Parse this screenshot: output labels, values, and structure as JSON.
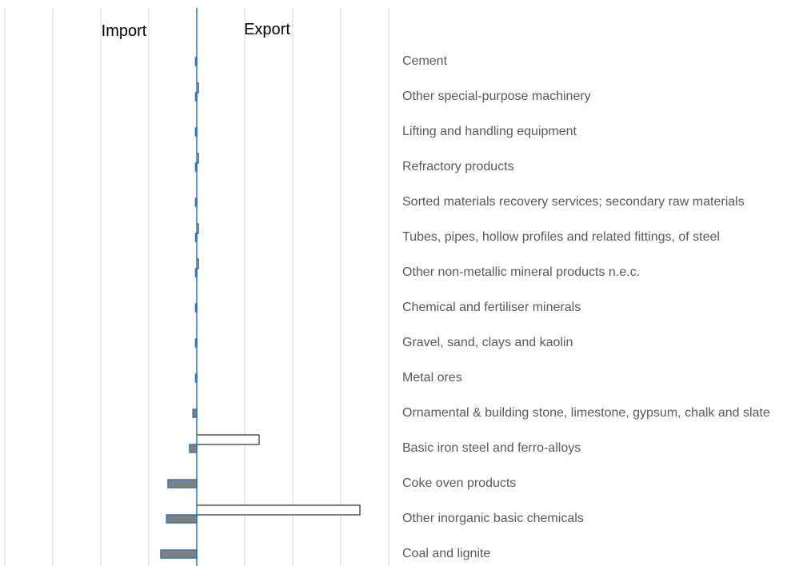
{
  "chart_data": {
    "type": "bar",
    "orientation": "horizontal",
    "diverging": true,
    "side_labels": {
      "left": "Import",
      "right": "Export"
    },
    "categories": [
      "Cement",
      "Other special-purpose machinery",
      "Lifting and handling equipment",
      "Refractory products",
      "Sorted materials recovery services; secondary raw materials",
      "Tubes, pipes, hollow profiles and related fittings, of steel",
      "Other non-metallic mineral products n.e.c.",
      "Chemical and fertiliser minerals",
      "Gravel, sand, clays and kaolin",
      "Metal ores",
      "Ornamental & building stone, limestone, gypsum, chalk and slate",
      "Basic iron steel and ferro-alloys",
      "Coke oven products",
      "Other inorganic basic chemicals",
      "Coal and lignite"
    ],
    "series": [
      {
        "role": "export",
        "values": [
          0,
          0.02,
          0,
          0.02,
          0,
          0.02,
          0.02,
          0,
          0,
          0,
          0,
          1.3,
          0,
          3.4,
          0
        ]
      },
      {
        "role": "import",
        "values": [
          -0.01,
          -0.01,
          -0.01,
          -0.01,
          -0.01,
          -0.01,
          -0.01,
          -0.01,
          -0.02,
          -0.02,
          -0.08,
          -0.15,
          -0.6,
          -0.63,
          -0.75
        ]
      }
    ],
    "xlim": [
      -4,
      4
    ],
    "grid": true,
    "colors": {
      "export_fill": "#ffffff",
      "export_stroke": "#000000",
      "import_fill": "#808080",
      "import_stroke": "#2e75b6",
      "axis": "#2e75b6",
      "grid": "#d9d9d9",
      "label": "#595959"
    }
  }
}
